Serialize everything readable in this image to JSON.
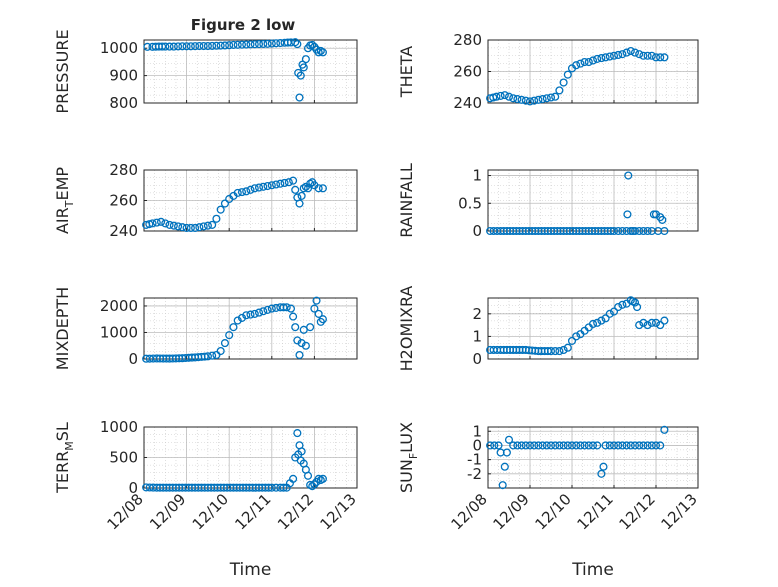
{
  "figure": {
    "title": "Figure 2 low"
  },
  "colors": {
    "marker": "#0072BD",
    "axis": "#262626",
    "grid": "#c8c8c8",
    "background": "#ffffff"
  },
  "chart_data": [
    {
      "id": "pressure",
      "type": "scatter",
      "title": "Figure 2 low",
      "xlabel": "",
      "ylabel": "PRESSURE",
      "xlim": [
        0,
        5
      ],
      "ylim": [
        800,
        1030
      ],
      "yticks": [
        800,
        900,
        1000
      ],
      "xtick_labels": [],
      "grid": true,
      "series": [
        {
          "x": [
            0.08,
            0.2,
            0.35,
            0.5,
            0.7,
            0.9,
            1.1,
            1.3,
            1.5,
            1.7,
            1.9,
            2.1,
            2.3,
            2.5,
            2.7,
            2.9,
            3.1,
            3.3,
            3.45,
            3.55,
            3.6,
            3.62,
            3.65,
            3.68,
            3.72,
            3.75,
            3.8,
            3.85,
            3.9,
            3.95,
            4.0,
            4.05,
            4.1,
            4.15,
            4.2
          ],
          "y": [
            1005,
            1005,
            1006,
            1006,
            1006,
            1007,
            1007,
            1008,
            1008,
            1009,
            1010,
            1012,
            1013,
            1014,
            1015,
            1016,
            1018,
            1020,
            1021,
            1022,
            1015,
            910,
            820,
            900,
            940,
            930,
            960,
            1000,
            1010,
            1012,
            1005,
            995,
            985,
            990,
            985
          ]
        }
      ]
    },
    {
      "id": "theta",
      "type": "scatter",
      "xlabel": "",
      "ylabel": "THETA",
      "xlim": [
        0,
        5
      ],
      "ylim": [
        240,
        280
      ],
      "yticks": [
        240,
        260,
        280
      ],
      "xtick_labels": [],
      "grid": true,
      "series": [
        {
          "x": [
            0.05,
            0.2,
            0.4,
            0.6,
            0.8,
            1.0,
            1.2,
            1.4,
            1.6,
            1.7,
            1.8,
            1.9,
            2.0,
            2.1,
            2.2,
            2.3,
            2.4,
            2.6,
            2.8,
            3.0,
            3.2,
            3.4,
            3.5,
            3.6,
            3.7,
            3.8,
            3.9,
            4.0,
            4.1,
            4.2
          ],
          "y": [
            243,
            244,
            245,
            243,
            242,
            241,
            242,
            243,
            244,
            248,
            253,
            258,
            262,
            264,
            265,
            266,
            266,
            268,
            269,
            270,
            271,
            273,
            272,
            271,
            270,
            270,
            270,
            269,
            269,
            269
          ]
        }
      ]
    },
    {
      "id": "air_temp",
      "type": "scatter",
      "xlabel": "",
      "ylabel": "AIR_TEMP",
      "xlim": [
        0,
        5
      ],
      "ylim": [
        240,
        280
      ],
      "yticks": [
        240,
        260,
        280
      ],
      "xtick_labels": [],
      "grid": true,
      "series": [
        {
          "x": [
            0.05,
            0.2,
            0.4,
            0.6,
            0.8,
            1.0,
            1.2,
            1.4,
            1.6,
            1.7,
            1.8,
            1.9,
            2.0,
            2.1,
            2.2,
            2.4,
            2.6,
            2.8,
            3.0,
            3.2,
            3.4,
            3.5,
            3.55,
            3.6,
            3.65,
            3.7,
            3.75,
            3.8,
            3.85,
            3.9,
            3.95,
            4.0,
            4.1,
            4.2
          ],
          "y": [
            244,
            245,
            246,
            244,
            243,
            242,
            242,
            243,
            244,
            248,
            254,
            258,
            261,
            263,
            265,
            266,
            268,
            269,
            270,
            271,
            272,
            273,
            267,
            262,
            258,
            263,
            268,
            269,
            268,
            271,
            272,
            270,
            268,
            268
          ]
        }
      ]
    },
    {
      "id": "rainfall",
      "type": "scatter",
      "xlabel": "",
      "ylabel": "RAINFALL",
      "xlim": [
        0,
        5
      ],
      "ylim": [
        0,
        1.1
      ],
      "yticks": [
        0,
        0.5,
        1
      ],
      "xtick_labels": [],
      "grid": true,
      "series": [
        {
          "x": [
            0.05,
            0.3,
            0.6,
            0.9,
            1.2,
            1.5,
            1.8,
            2.1,
            2.4,
            2.7,
            3.0,
            3.2,
            3.3,
            3.32,
            3.34,
            3.4,
            3.45,
            3.5,
            3.6,
            3.7,
            3.8,
            3.9,
            3.95,
            4.0,
            4.05,
            4.1,
            4.15,
            4.2
          ],
          "y": [
            0,
            0,
            0,
            0,
            0,
            0,
            0,
            0,
            0,
            0,
            0,
            0,
            0,
            0.3,
            1.0,
            0,
            0,
            0,
            0,
            0,
            0,
            0,
            0.3,
            0.3,
            0,
            0.25,
            0.2,
            0
          ]
        }
      ]
    },
    {
      "id": "mixdepth",
      "type": "scatter",
      "xlabel": "",
      "ylabel": "MIXDEPTH",
      "xlim": [
        0,
        5
      ],
      "ylim": [
        0,
        2300
      ],
      "yticks": [
        0,
        1000,
        2000
      ],
      "xtick_labels": [],
      "grid": true,
      "series": [
        {
          "x": [
            0.05,
            0.3,
            0.6,
            0.9,
            1.2,
            1.5,
            1.7,
            1.8,
            1.9,
            2.0,
            2.1,
            2.2,
            2.4,
            2.6,
            2.8,
            3.0,
            3.2,
            3.35,
            3.45,
            3.5,
            3.55,
            3.6,
            3.65,
            3.7,
            3.75,
            3.8,
            3.9,
            4.0,
            4.05,
            4.1,
            4.15,
            4.2
          ],
          "y": [
            10,
            20,
            15,
            30,
            60,
            100,
            150,
            300,
            600,
            900,
            1200,
            1450,
            1650,
            1700,
            1800,
            1900,
            1950,
            1950,
            1900,
            1600,
            1200,
            700,
            150,
            600,
            1100,
            500,
            1200,
            1900,
            2200,
            1700,
            1400,
            1500
          ]
        }
      ]
    },
    {
      "id": "h2omixra",
      "type": "scatter",
      "xlabel": "",
      "ylabel": "H2OMIXRA",
      "xlim": [
        0,
        5
      ],
      "ylim": [
        0,
        2.7
      ],
      "yticks": [
        0,
        1,
        2
      ],
      "xtick_labels": [],
      "grid": true,
      "series": [
        {
          "x": [
            0.05,
            0.3,
            0.6,
            0.9,
            1.2,
            1.5,
            1.7,
            1.8,
            1.9,
            2.0,
            2.1,
            2.2,
            2.3,
            2.4,
            2.5,
            2.6,
            2.7,
            2.8,
            2.9,
            3.0,
            3.1,
            3.2,
            3.3,
            3.4,
            3.45,
            3.5,
            3.55,
            3.6,
            3.7,
            3.8,
            3.9,
            4.0,
            4.1,
            4.2
          ],
          "y": [
            0.4,
            0.4,
            0.4,
            0.4,
            0.35,
            0.35,
            0.35,
            0.4,
            0.5,
            0.8,
            1.0,
            1.1,
            1.25,
            1.4,
            1.55,
            1.6,
            1.7,
            1.8,
            2.0,
            2.1,
            2.3,
            2.4,
            2.45,
            2.6,
            2.55,
            2.5,
            2.3,
            1.5,
            1.6,
            1.5,
            1.6,
            1.6,
            1.5,
            1.7
          ]
        }
      ]
    },
    {
      "id": "terr_msl",
      "type": "scatter",
      "xlabel": "Time",
      "ylabel": "TERR_MSL",
      "xlim": [
        0,
        5
      ],
      "ylim": [
        0,
        1000
      ],
      "yticks": [
        0,
        500,
        1000
      ],
      "xtick_labels": [
        "12/08",
        "12/09",
        "12/10",
        "12/11",
        "12/12",
        "12/13"
      ],
      "grid": true,
      "series": [
        {
          "x": [
            0.05,
            0.3,
            0.6,
            0.9,
            1.2,
            1.5,
            1.8,
            2.1,
            2.4,
            2.7,
            3.0,
            3.2,
            3.35,
            3.5,
            3.55,
            3.6,
            3.62,
            3.65,
            3.68,
            3.7,
            3.75,
            3.8,
            3.85,
            3.9,
            3.95,
            4.0,
            4.05,
            4.1,
            4.15,
            4.2
          ],
          "y": [
            10,
            5,
            5,
            5,
            5,
            5,
            5,
            5,
            5,
            5,
            5,
            5,
            5,
            150,
            500,
            900,
            550,
            700,
            450,
            600,
            400,
            300,
            200,
            50,
            30,
            60,
            100,
            150,
            130,
            150
          ]
        }
      ]
    },
    {
      "id": "sun_flux",
      "type": "scatter",
      "xlabel": "Time",
      "ylabel": "SUN_FLUX",
      "xlim": [
        0,
        5
      ],
      "ylim": [
        -3,
        1.3
      ],
      "yticks": [
        -2,
        -1,
        0,
        1
      ],
      "xtick_labels": [
        "12/08",
        "12/09",
        "12/10",
        "12/11",
        "12/12",
        "12/13"
      ],
      "grid": true,
      "series": [
        {
          "x": [
            0.05,
            0.15,
            0.25,
            0.3,
            0.35,
            0.4,
            0.45,
            0.5,
            0.6,
            0.8,
            1.0,
            1.2,
            1.4,
            1.6,
            1.8,
            2.0,
            2.2,
            2.4,
            2.6,
            2.7,
            2.75,
            2.8,
            3.0,
            3.2,
            3.4,
            3.6,
            3.8,
            4.0,
            4.1,
            4.2
          ],
          "y": [
            0,
            0,
            0,
            -0.5,
            -2.8,
            -1.5,
            -0.5,
            0.4,
            0,
            0,
            0,
            0,
            0,
            0,
            0,
            0,
            0,
            0,
            0,
            -2,
            -1.5,
            0,
            0,
            0,
            0,
            0,
            0,
            0,
            0,
            1.1
          ]
        }
      ]
    }
  ]
}
